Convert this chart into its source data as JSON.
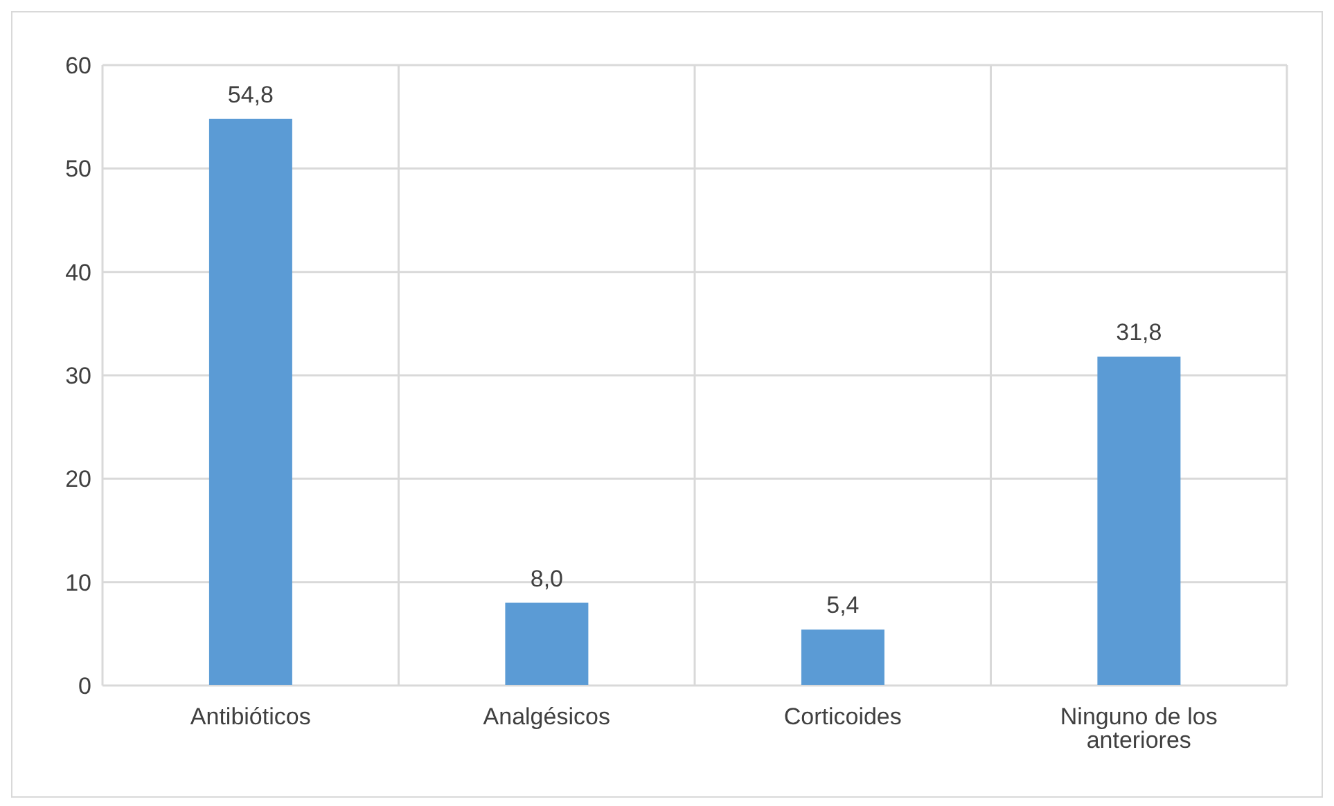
{
  "chart_data": {
    "type": "bar",
    "categories": [
      "Antibióticos",
      "Analgésicos",
      "Corticoides",
      "Ninguno de los anteriores"
    ],
    "values": [
      54.8,
      8.0,
      5.4,
      31.8
    ],
    "value_labels": [
      "54,8",
      "8,0",
      "5,4",
      "31,8"
    ],
    "color": "#5b9bd5",
    "ylim": [
      0,
      60
    ],
    "yticks": [
      0,
      10,
      20,
      30,
      40,
      50,
      60
    ],
    "grid": true
  }
}
